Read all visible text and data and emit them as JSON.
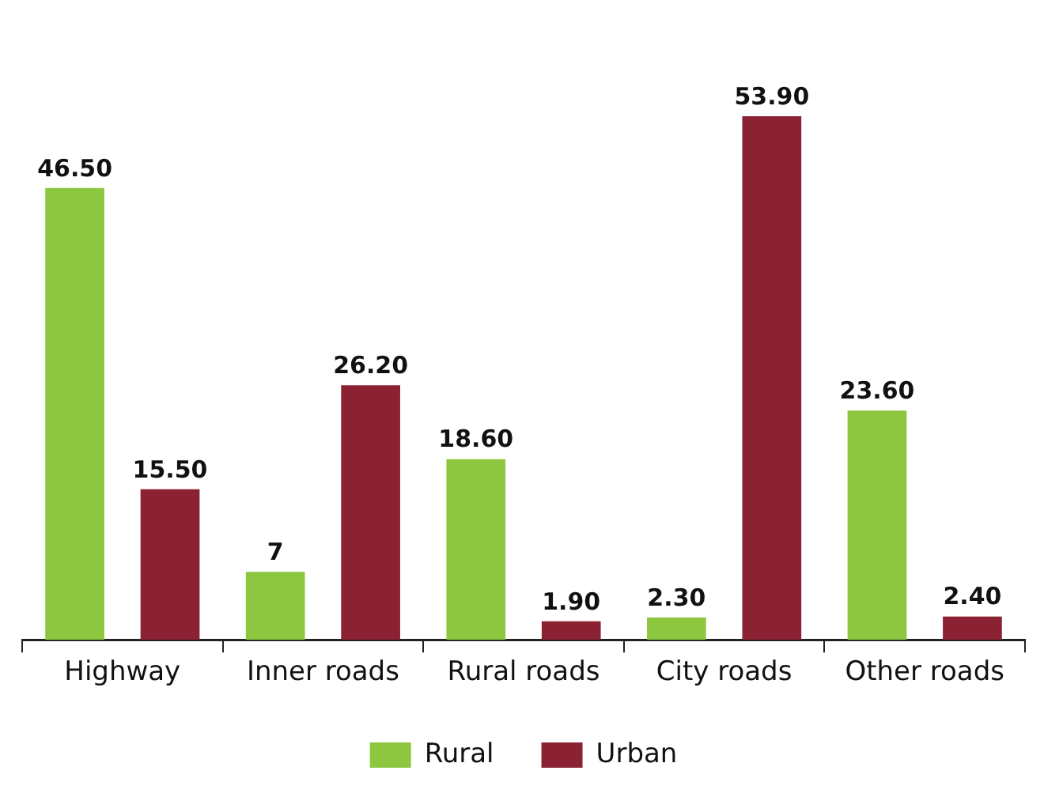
{
  "chart_data": {
    "type": "bar",
    "categories": [
      "Highway",
      "Inner roads",
      "Rural roads",
      "City roads",
      "Other roads"
    ],
    "series": [
      {
        "name": "Rural",
        "color": "#8dc63f",
        "values": [
          46.5,
          7,
          18.6,
          2.3,
          23.6
        ],
        "value_labels": [
          "46.50",
          "7",
          "18.60",
          "2.30",
          "23.60"
        ]
      },
      {
        "name": "Urban",
        "color": "#8b2234",
        "values": [
          15.5,
          26.2,
          1.9,
          53.9,
          2.4
        ],
        "value_labels": [
          "15.50",
          "26.20",
          "1.90",
          "53.90",
          "2.40"
        ]
      }
    ],
    "legend": "bottom"
  }
}
